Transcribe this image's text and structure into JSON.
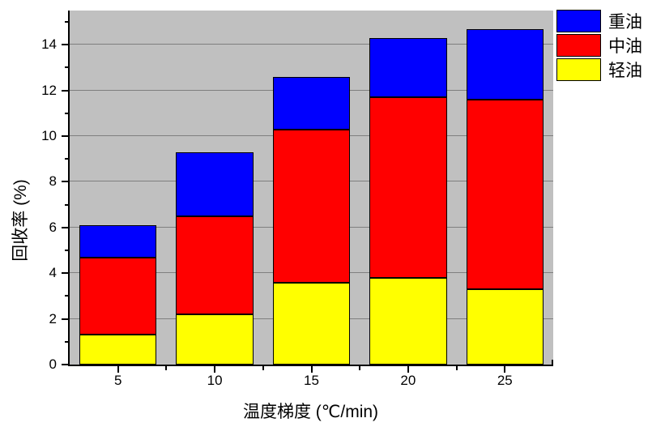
{
  "chart_data": {
    "type": "bar",
    "stacked": true,
    "stack_order": "bottom-to-top",
    "categories": [
      5,
      10,
      15,
      20,
      25
    ],
    "series": [
      {
        "name": "轻油",
        "color": "#FFFF00",
        "values": [
          1.3,
          2.2,
          3.6,
          3.8,
          3.3
        ]
      },
      {
        "name": "中油",
        "color": "#FF0000",
        "values": [
          3.4,
          4.3,
          6.7,
          7.9,
          8.3
        ]
      },
      {
        "name": "重油",
        "color": "#0000FF",
        "values": [
          1.4,
          2.8,
          2.3,
          2.6,
          3.1
        ]
      }
    ],
    "stack_totals": [
      6.1,
      9.3,
      12.6,
      14.3,
      14.7
    ],
    "segment_cumulative_tops": {
      "轻油": [
        1.3,
        2.2,
        3.6,
        3.8,
        3.3
      ],
      "中油": [
        4.7,
        6.5,
        10.3,
        11.7,
        11.6
      ],
      "重油": [
        6.1,
        9.3,
        12.6,
        14.3,
        14.7
      ]
    },
    "title": "",
    "xlabel": "温度梯度 (℃/min)",
    "ylabel": "回收率 (%)",
    "xlim": [
      2.5,
      27.5
    ],
    "ylim": [
      0,
      15.5
    ],
    "bar_width_units": 4,
    "x_major_ticks": [
      5,
      10,
      15,
      20,
      25
    ],
    "x_minor_ticks": [
      7.5,
      12.5,
      17.5,
      22.5
    ],
    "y_major_ticks": [
      0,
      2,
      4,
      6,
      8,
      10,
      12,
      14
    ],
    "y_minor_ticks": [
      1,
      3,
      5,
      7,
      9,
      11,
      13,
      15
    ],
    "grid": "horizontal-at-major-ticks",
    "legend": {
      "position": "top-right-outside",
      "entries": [
        {
          "label": "重油",
          "color": "#0000FF"
        },
        {
          "label": "中油",
          "color": "#FF0000"
        },
        {
          "label": "轻油",
          "color": "#FFFF00"
        }
      ]
    },
    "colors": {
      "plot_background": "#C0C0C0",
      "gridline": "#7F7F7F",
      "axis": "#000000",
      "bar_border": "#000000",
      "page_background": "#FFFFFF"
    }
  }
}
